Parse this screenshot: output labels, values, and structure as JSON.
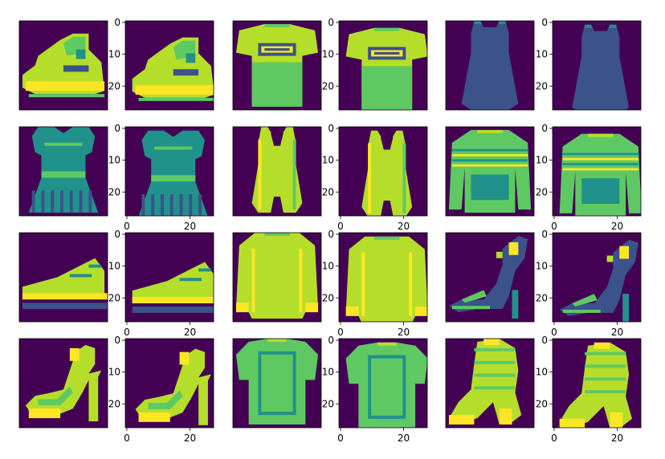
{
  "figure": {
    "layout": "4 rows x 6 columns of image panels, each pair shows an item and a shifted copy",
    "colormap": [
      "#440154",
      "#3b528b",
      "#21918c",
      "#5ec962",
      "#b5de2b",
      "#fde725"
    ],
    "background": "#ffffff"
  },
  "image_size": 28,
  "axis_ticks": {
    "y_tick_labels": [
      "0",
      "10",
      "20"
    ],
    "x_tick_labels": [
      "0",
      "20"
    ]
  },
  "panels": [
    {
      "item": "ankle-boot",
      "variant": "original",
      "y_axis": false,
      "x_axis": false
    },
    {
      "item": "ankle-boot",
      "variant": "shifted",
      "y_axis": true,
      "x_axis": false
    },
    {
      "item": "t-shirt",
      "variant": "original",
      "y_axis": false,
      "x_axis": false
    },
    {
      "item": "t-shirt",
      "variant": "shifted",
      "y_axis": true,
      "x_axis": false
    },
    {
      "item": "tank-top",
      "variant": "original",
      "y_axis": false,
      "x_axis": false
    },
    {
      "item": "tank-top",
      "variant": "shifted",
      "y_axis": true,
      "x_axis": false
    },
    {
      "item": "dress",
      "variant": "original",
      "y_axis": false,
      "x_axis": false
    },
    {
      "item": "dress",
      "variant": "shifted",
      "y_axis": true,
      "x_axis": true
    },
    {
      "item": "romper",
      "variant": "original",
      "y_axis": false,
      "x_axis": false
    },
    {
      "item": "romper",
      "variant": "shifted",
      "y_axis": true,
      "x_axis": true
    },
    {
      "item": "pullover",
      "variant": "original",
      "y_axis": false,
      "x_axis": false
    },
    {
      "item": "pullover",
      "variant": "shifted",
      "y_axis": true,
      "x_axis": true
    },
    {
      "item": "sneaker",
      "variant": "original",
      "y_axis": false,
      "x_axis": false
    },
    {
      "item": "sneaker",
      "variant": "shifted",
      "y_axis": true,
      "x_axis": true
    },
    {
      "item": "sweater",
      "variant": "original",
      "y_axis": false,
      "x_axis": false
    },
    {
      "item": "sweater",
      "variant": "shifted",
      "y_axis": true,
      "x_axis": true
    },
    {
      "item": "strappy-heel",
      "variant": "original",
      "y_axis": false,
      "x_axis": false
    },
    {
      "item": "strappy-heel",
      "variant": "shifted",
      "y_axis": true,
      "x_axis": true
    },
    {
      "item": "sandal",
      "variant": "original",
      "y_axis": false,
      "x_axis": false
    },
    {
      "item": "sandal",
      "variant": "shifted",
      "y_axis": true,
      "x_axis": true
    },
    {
      "item": "shirt",
      "variant": "original",
      "y_axis": false,
      "x_axis": false
    },
    {
      "item": "shirt",
      "variant": "shifted",
      "y_axis": true,
      "x_axis": true
    },
    {
      "item": "heeled-boot",
      "variant": "original",
      "y_axis": false,
      "x_axis": false
    },
    {
      "item": "heeled-boot",
      "variant": "shifted",
      "y_axis": true,
      "x_axis": true
    }
  ]
}
